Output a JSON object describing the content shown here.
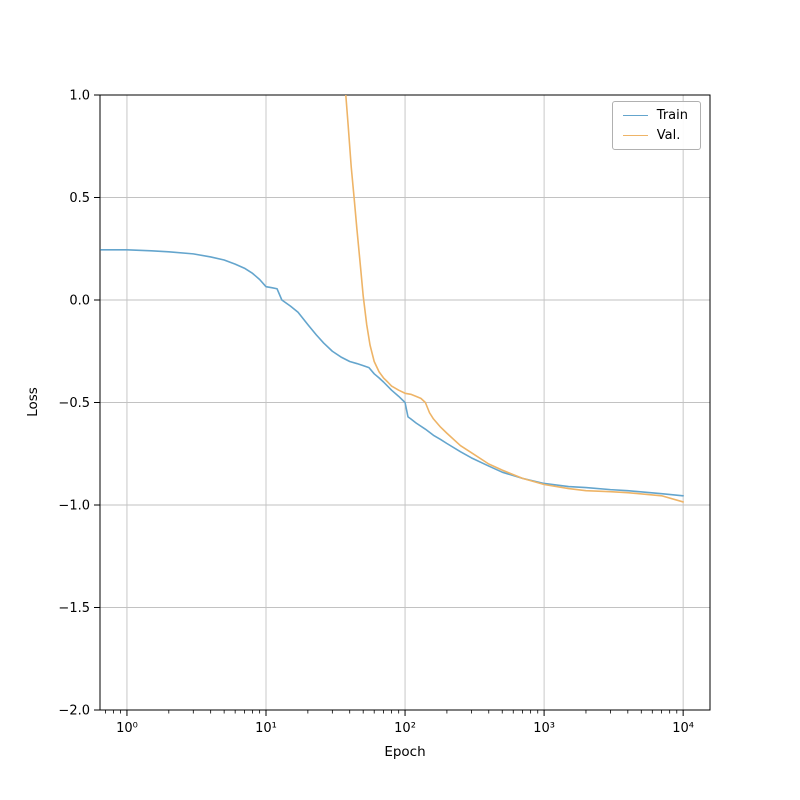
{
  "figure": {
    "background": "#ffffff",
    "axes_background": "#ffffff",
    "grid_color": "#c2c2c2",
    "spine_color": "#000000",
    "tick_color": "#000000"
  },
  "legend": {
    "position": "upper right",
    "entries": [
      {
        "label": "Train",
        "color": "#64a5cd"
      },
      {
        "label": "Val.",
        "color": "#eeb467"
      }
    ]
  },
  "chart_data": {
    "type": "line",
    "title": "",
    "xlabel": "Epoch",
    "ylabel": "Loss",
    "x_scale": "log",
    "y_scale": "linear",
    "xlim": [
      0.64,
      15600
    ],
    "ylim": [
      -2.0,
      1.0
    ],
    "x_ticks": [
      1,
      10,
      100,
      1000,
      10000
    ],
    "x_tick_labels": [
      "10⁰",
      "10¹",
      "10²",
      "10³",
      "10⁴"
    ],
    "y_ticks": [
      1.0,
      0.5,
      0.0,
      -0.5,
      -1.0,
      -1.5,
      -2.0
    ],
    "y_tick_labels": [
      "1.0",
      "0.5",
      "0.0",
      "−0.5",
      "−1.0",
      "−1.5",
      "−2.0"
    ],
    "grid": true,
    "legend_position": "upper right",
    "series": [
      {
        "name": "Train",
        "color": "#64a5cd",
        "x": [
          0.65,
          1,
          1.5,
          2,
          3,
          4,
          5,
          6,
          7,
          8,
          9,
          10,
          11,
          12,
          13,
          15,
          17,
          20,
          23,
          26,
          30,
          35,
          40,
          45,
          50,
          55,
          60,
          65,
          70,
          80,
          90,
          100,
          105,
          110,
          120,
          140,
          160,
          180,
          200,
          250,
          300,
          400,
          500,
          700,
          1000,
          1500,
          2000,
          3000,
          4000,
          7000,
          10000
        ],
        "y": [
          0.245,
          0.245,
          0.24,
          0.235,
          0.225,
          0.21,
          0.195,
          0.175,
          0.155,
          0.13,
          0.1,
          0.065,
          0.06,
          0.055,
          0.0,
          -0.03,
          -0.06,
          -0.12,
          -0.17,
          -0.21,
          -0.25,
          -0.28,
          -0.3,
          -0.31,
          -0.32,
          -0.33,
          -0.36,
          -0.38,
          -0.4,
          -0.44,
          -0.47,
          -0.5,
          -0.57,
          -0.58,
          -0.6,
          -0.63,
          -0.66,
          -0.68,
          -0.7,
          -0.74,
          -0.77,
          -0.81,
          -0.84,
          -0.87,
          -0.895,
          -0.91,
          -0.915,
          -0.925,
          -0.93,
          -0.945,
          -0.955
        ]
      },
      {
        "name": "Val.",
        "color": "#eeb467",
        "x": [
          35,
          37,
          39,
          41,
          43,
          45,
          48,
          50,
          53,
          56,
          60,
          65,
          70,
          75,
          80,
          90,
          100,
          110,
          120,
          130,
          140,
          150,
          160,
          180,
          200,
          250,
          300,
          400,
          500,
          700,
          1000,
          1500,
          2000,
          3000,
          4000,
          7000,
          10000
        ],
        "y": [
          1.3,
          1.05,
          0.85,
          0.65,
          0.5,
          0.35,
          0.15,
          0.02,
          -0.12,
          -0.22,
          -0.3,
          -0.35,
          -0.38,
          -0.4,
          -0.42,
          -0.44,
          -0.455,
          -0.46,
          -0.47,
          -0.48,
          -0.5,
          -0.55,
          -0.58,
          -0.62,
          -0.65,
          -0.71,
          -0.745,
          -0.8,
          -0.83,
          -0.87,
          -0.9,
          -0.92,
          -0.93,
          -0.935,
          -0.94,
          -0.955,
          -0.985
        ]
      }
    ]
  }
}
